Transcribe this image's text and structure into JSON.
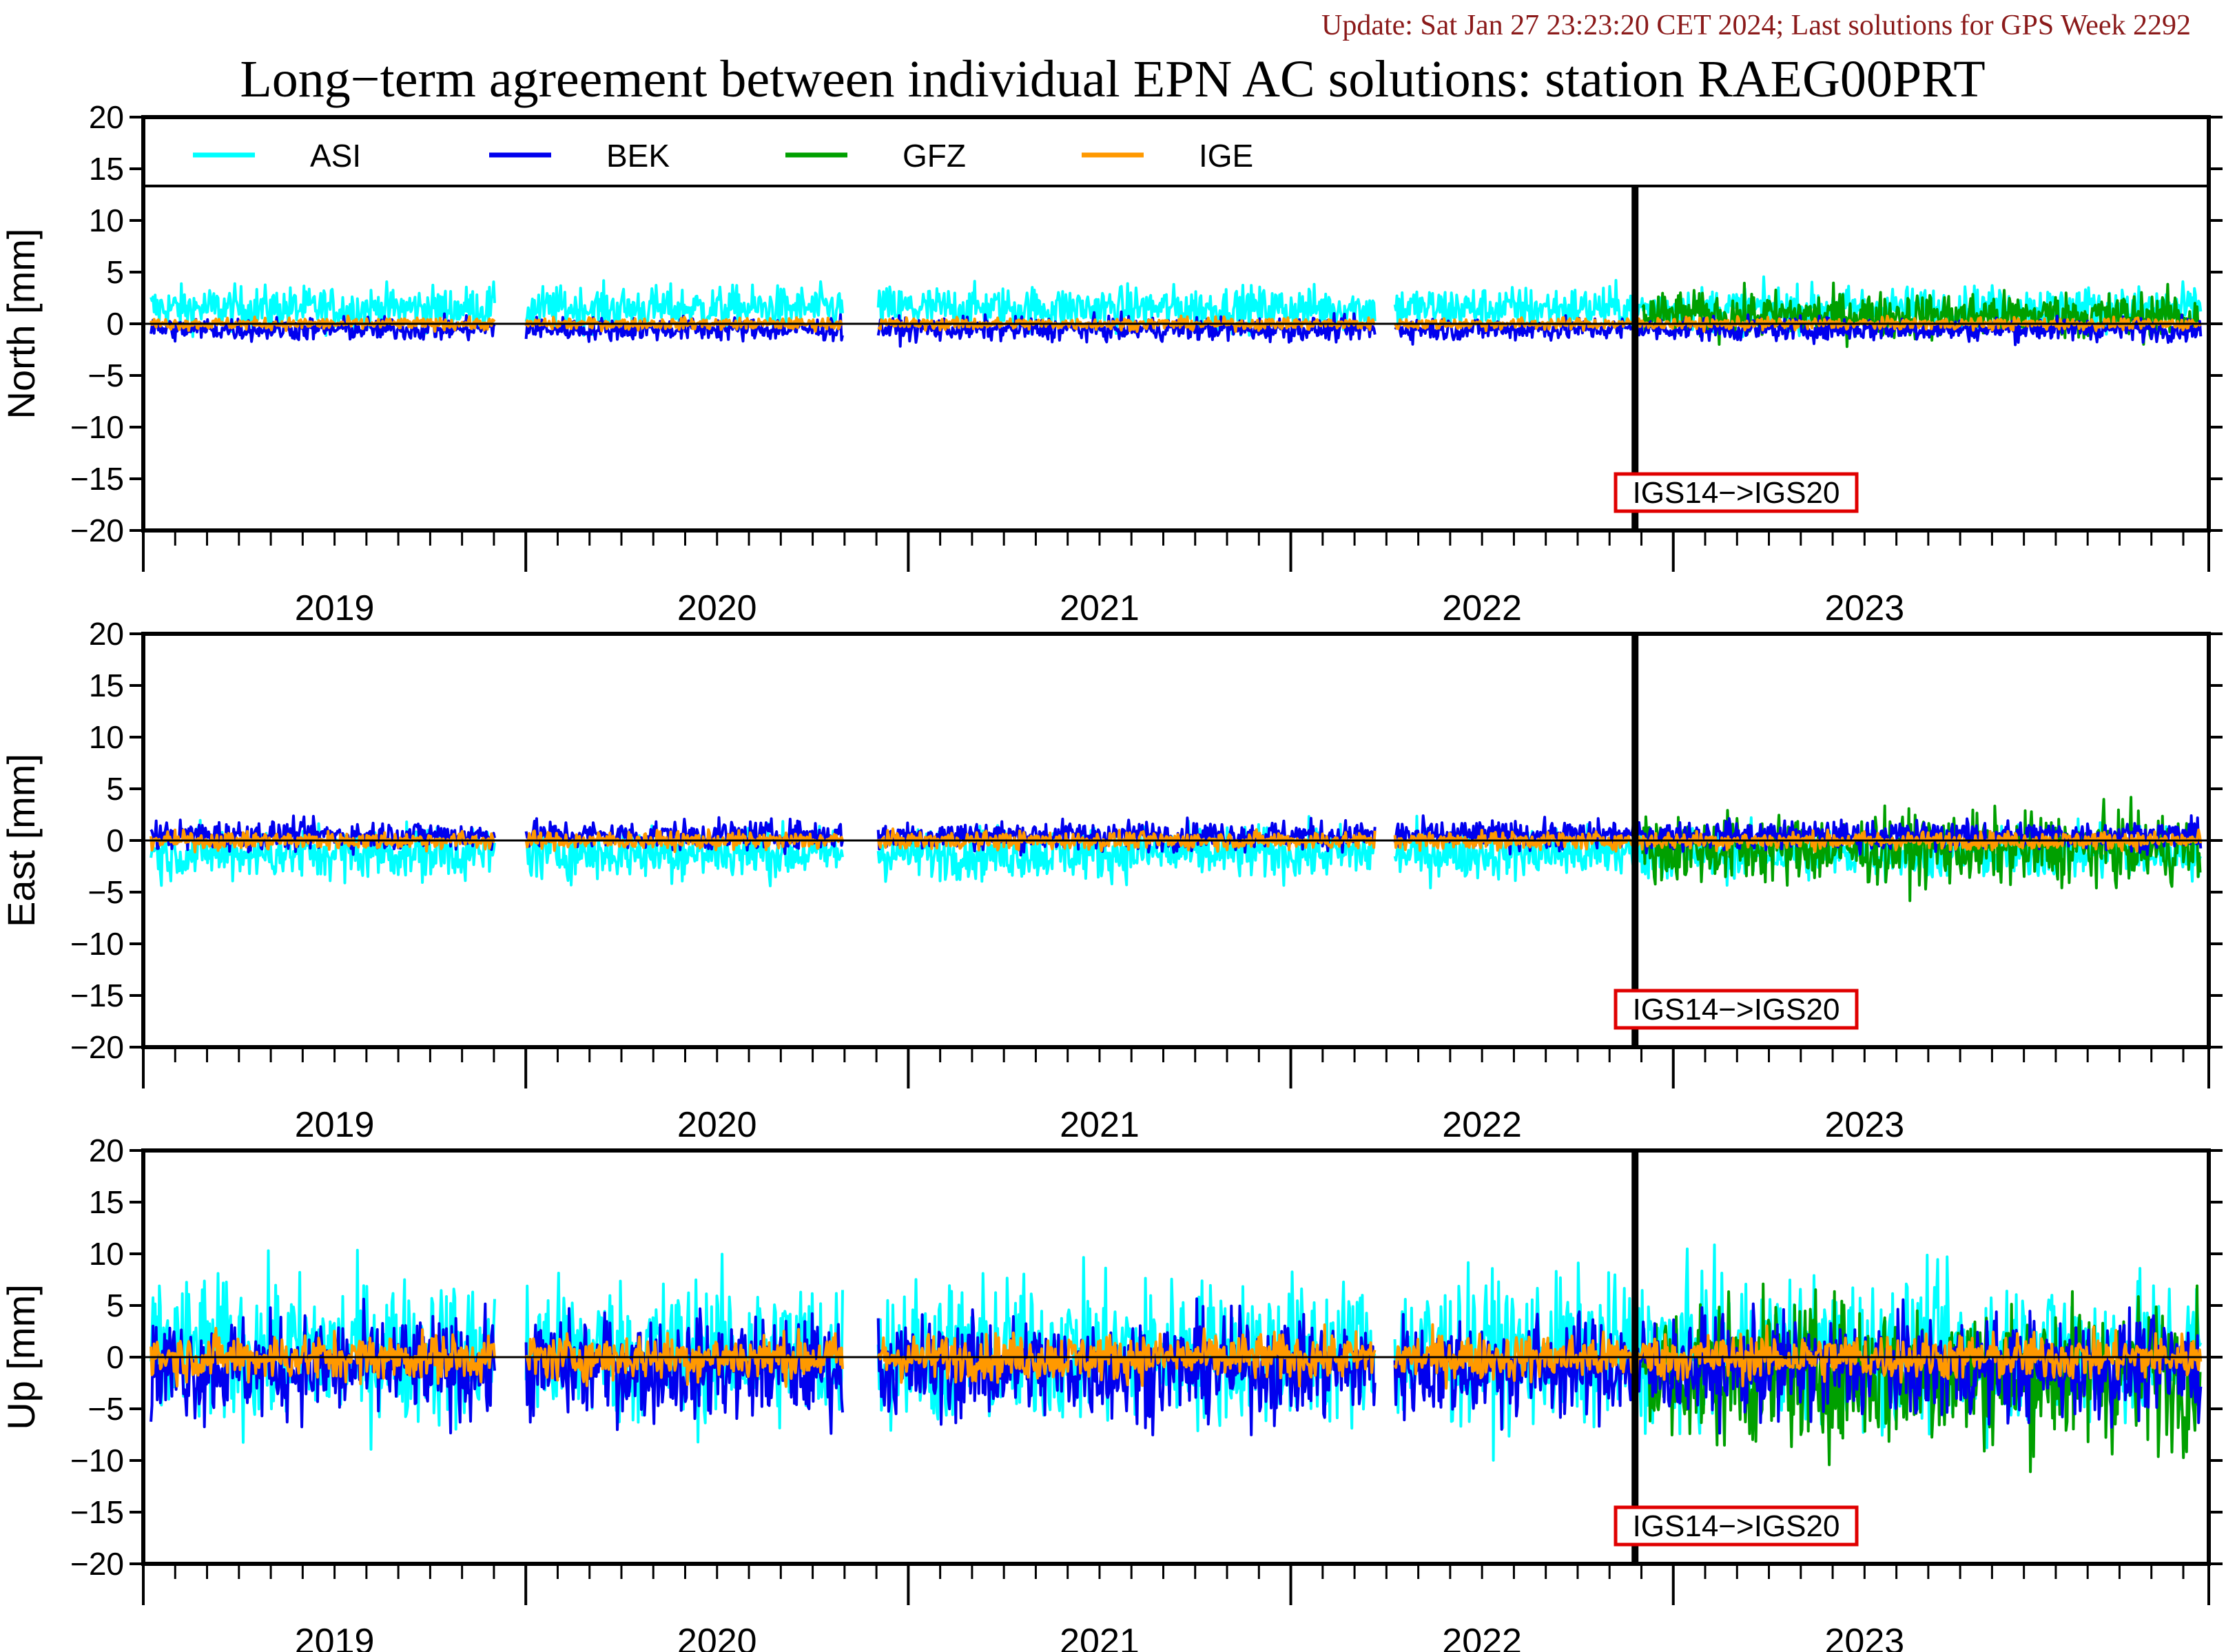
{
  "update_line": "Update: Sat Jan 27 23:23:20 CET 2024; Last solutions for GPS Week 2292",
  "title": "Long−term agreement between individual EPN AC solutions: station RAEG00PRT",
  "colors": {
    "update_text": "#8b1a1a",
    "annotation_box": "#e00000",
    "ASI": "#00ffff",
    "BEK": "#0000ee",
    "GFZ": "#00a000",
    "IGE": "#ff9900"
  },
  "chart_data": {
    "type": "line",
    "xlim": [
      2018.5,
      2023.9
    ],
    "x_major_ticks": [
      2018.5,
      2019.5,
      2020.5,
      2021.5,
      2022.5
    ],
    "year_labels": [
      "2019",
      "2020",
      "2021",
      "2022",
      "2023"
    ],
    "ytick_labels": [
      "20",
      "15",
      "10",
      "5",
      "0",
      "−5",
      "−10",
      "−15",
      "−20"
    ],
    "ylim": [
      -20,
      20
    ],
    "legend": [
      "ASI",
      "BEK",
      "GFZ",
      "IGE"
    ],
    "legend_placement": "top, inside first panel",
    "frame_change": {
      "x": 2022.4,
      "label": "IGS14−>IGS20"
    },
    "panels": [
      {
        "ylabel": "North [mm]",
        "series": [
          {
            "name": "ASI",
            "start": 2018.52,
            "end": 2023.88,
            "bias": 1.5,
            "amp": 1.5,
            "gaps": [
              [
                2019.42,
                2019.5
              ],
              [
                2020.33,
                2020.42
              ],
              [
                2021.72,
                2021.77
              ]
            ]
          },
          {
            "name": "BEK",
            "start": 2018.52,
            "end": 2023.88,
            "bias": -0.5,
            "amp": 0.8,
            "gaps": [
              [
                2019.42,
                2019.5
              ],
              [
                2020.33,
                2020.42
              ],
              [
                2021.72,
                2021.77
              ]
            ]
          },
          {
            "name": "GFZ",
            "start": 2022.42,
            "end": 2023.88,
            "bias": 0.8,
            "amp": 1.6,
            "gaps": []
          },
          {
            "name": "IGE",
            "start": 2018.52,
            "end": 2023.88,
            "bias": 0.0,
            "amp": 0.4,
            "gaps": [
              [
                2019.42,
                2019.5
              ],
              [
                2020.33,
                2020.42
              ],
              [
                2021.72,
                2021.77
              ]
            ]
          }
        ]
      },
      {
        "ylabel": "East [mm]",
        "series": [
          {
            "name": "ASI",
            "start": 2018.52,
            "end": 2023.88,
            "bias": -1.2,
            "amp": 1.8,
            "gaps": [
              [
                2019.42,
                2019.5
              ],
              [
                2020.33,
                2020.42
              ],
              [
                2021.72,
                2021.77
              ]
            ]
          },
          {
            "name": "BEK",
            "start": 2018.52,
            "end": 2023.88,
            "bias": 0.5,
            "amp": 1.0,
            "gaps": [
              [
                2019.42,
                2019.5
              ],
              [
                2020.33,
                2020.42
              ],
              [
                2021.72,
                2021.77
              ]
            ]
          },
          {
            "name": "GFZ",
            "start": 2022.42,
            "end": 2023.88,
            "bias": -0.8,
            "amp": 2.4,
            "gaps": []
          },
          {
            "name": "IGE",
            "start": 2018.52,
            "end": 2023.88,
            "bias": 0.0,
            "amp": 0.6,
            "gaps": [
              [
                2019.42,
                2019.5
              ],
              [
                2020.33,
                2020.42
              ],
              [
                2021.72,
                2021.77
              ]
            ]
          }
        ]
      },
      {
        "ylabel": "Up [mm]",
        "series": [
          {
            "name": "ASI",
            "start": 2018.52,
            "end": 2023.88,
            "bias": 0.5,
            "amp": 5.0,
            "gaps": [
              [
                2019.42,
                2019.5
              ],
              [
                2020.33,
                2020.42
              ],
              [
                2021.72,
                2021.77
              ]
            ]
          },
          {
            "name": "BEK",
            "start": 2018.52,
            "end": 2023.88,
            "bias": -1.0,
            "amp": 3.5,
            "gaps": [
              [
                2019.42,
                2019.5
              ],
              [
                2020.33,
                2020.42
              ],
              [
                2021.72,
                2021.77
              ]
            ]
          },
          {
            "name": "GFZ",
            "start": 2022.42,
            "end": 2023.88,
            "bias": -1.5,
            "amp": 5.0,
            "gaps": []
          },
          {
            "name": "IGE",
            "start": 2018.52,
            "end": 2023.88,
            "bias": 0.0,
            "amp": 1.6,
            "gaps": [
              [
                2019.42,
                2019.5
              ],
              [
                2020.33,
                2020.42
              ],
              [
                2021.72,
                2021.77
              ]
            ]
          }
        ]
      }
    ]
  }
}
